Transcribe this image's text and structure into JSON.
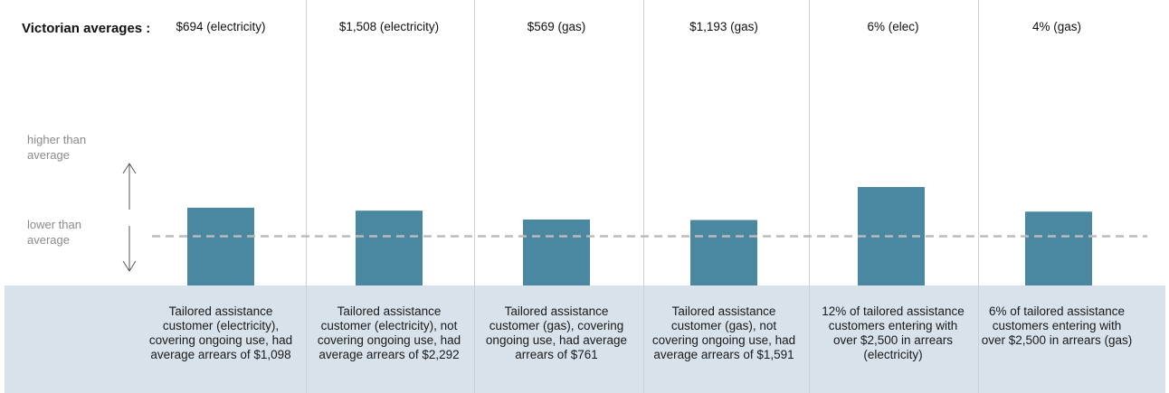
{
  "row_label": "Victorian averages :",
  "scale_labels": {
    "higher": "higher than average",
    "lower": "lower than average"
  },
  "colors": {
    "bar": "#4a88a1",
    "band": "#d7e2ea",
    "reference_line": "#bbbbbb"
  },
  "chart_data": {
    "type": "bar",
    "categories": [
      "Tailored assistance customer (electricity), covering ongoing use, had average arrears of $1,098",
      "Tailored assistance customer (electricity), not covering ongoing use, had average arrears of $2,292",
      "Tailored assistance customer (gas), covering ongoing use, had average arrears of $761",
      "Tailored assistance customer (gas), not covering ongoing use, had average arrears of $1,591",
      "12% of tailored assistance customers entering with over $2,500 in arrears (electricity)",
      "6% of tailored assistance customers entering with over $2,500 in arrears (gas)"
    ],
    "averages": [
      "$694 (electricity)",
      "$1,508 (electricity)",
      "$569 (gas)",
      "$1,193 (gas)",
      "6% (elec)",
      "4% (gas)"
    ],
    "values": [
      1.58,
      1.52,
      1.34,
      1.33,
      2.0,
      1.5
    ],
    "reference": 1.0,
    "ylim": [
      0,
      2.0
    ],
    "grid": false,
    "legend": "none"
  }
}
